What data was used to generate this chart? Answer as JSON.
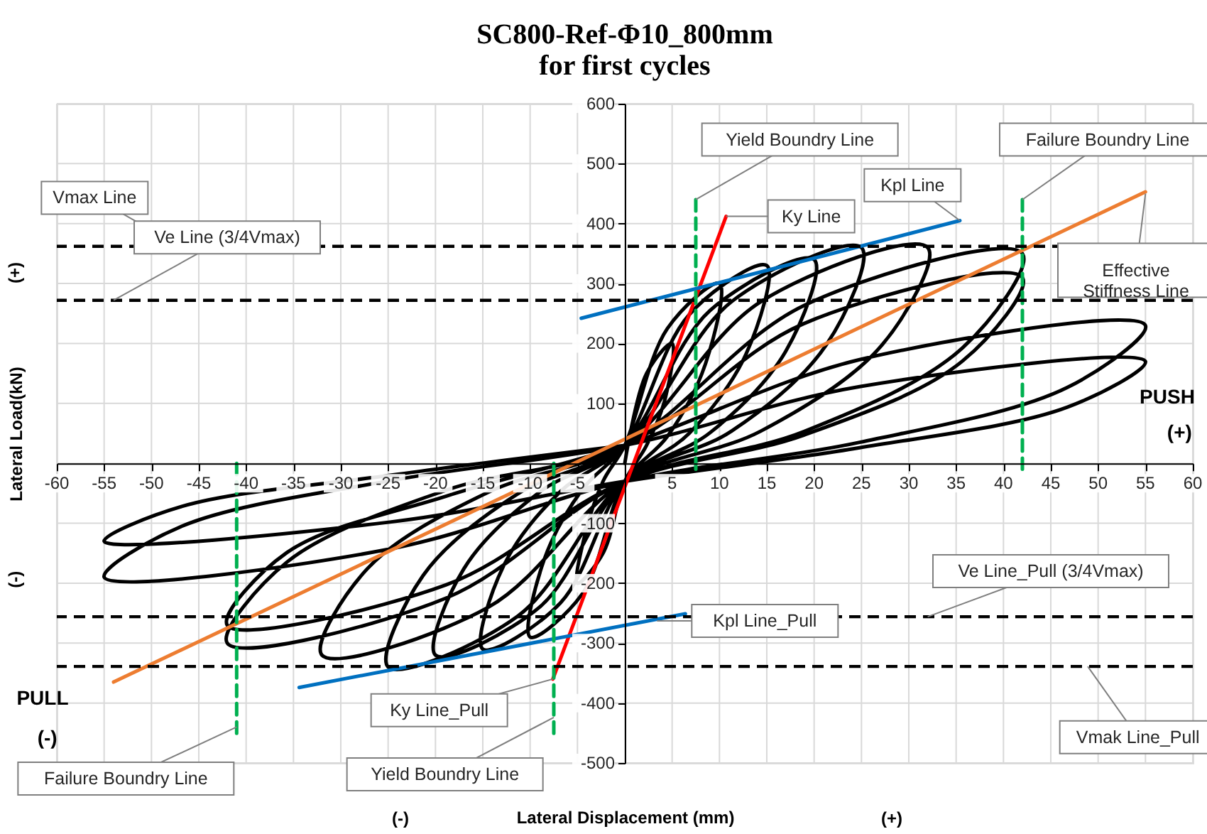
{
  "chart_data": {
    "type": "line",
    "title": "SC800-Ref-Φ10_800mm",
    "subtitle": "for first cycles",
    "xlabel": "Lateral Displacement (mm)",
    "ylabel": "Lateral Load(kN)",
    "xlim": [
      -60,
      60
    ],
    "xticks": [
      -60,
      -55,
      -50,
      -45,
      -40,
      -35,
      -30,
      -25,
      -20,
      -15,
      -10,
      -5,
      {
        "value": 0,
        "label": null
      },
      5,
      10,
      15,
      20,
      25,
      30,
      35,
      40,
      45,
      50,
      55,
      60
    ],
    "ylim": [
      -500,
      600
    ],
    "yticks": [
      -500,
      -400,
      -300,
      -200,
      -100,
      {
        "value": 0,
        "label": null
      },
      100,
      200,
      300,
      400,
      500,
      600
    ],
    "grid": true,
    "series": [
      {
        "color": "#000000",
        "x": [
          0,
          2.3,
          5,
          4.3,
          2.3,
          0,
          -2.3,
          -5,
          -4.3,
          -2.3,
          0,
          4.5,
          10,
          8.5,
          4.5,
          0,
          -4.5,
          -10,
          -8.5,
          -4.5,
          0,
          6.8,
          15,
          12.8,
          6.8,
          0,
          -6.8,
          -15,
          -12.8,
          -6.8,
          0,
          9,
          20,
          17,
          9,
          0,
          -9,
          -20,
          -17,
          -9,
          0,
          11.3,
          25,
          21.3,
          11.3,
          0,
          -11.3,
          -25,
          -21.3,
          -11.3,
          0,
          14.4,
          32,
          27.2,
          14.4,
          0,
          -14.4,
          -32,
          -27.2,
          -14.4,
          0,
          18.9,
          42,
          35.7,
          18.9,
          0,
          -18.9,
          -42,
          -35.7,
          -18.9,
          0,
          18.9,
          42,
          35.7,
          18.9,
          0,
          -18.9,
          -42,
          -35.7,
          -18.9,
          0,
          24.8,
          55,
          46.8,
          24.8,
          0,
          -24.8,
          -55,
          -46.8,
          -24.8,
          0,
          24.8,
          55,
          46.8,
          24.8,
          0,
          -24.8,
          -55,
          -46.8,
          -24.8,
          0
        ],
        "values": [
          0,
          150,
          200,
          110,
          30,
          -30,
          -150,
          -200,
          -125,
          -30,
          30,
          225,
          300,
          165,
          45,
          -30,
          -218,
          -290,
          -160,
          -44,
          30,
          248,
          330,
          182,
          50,
          -30,
          -233,
          -310,
          -171,
          -47,
          30,
          255,
          340,
          187,
          51,
          -30,
          -240,
          -320,
          -176,
          -48,
          30,
          270,
          360,
          198,
          54,
          -30,
          -255,
          -340,
          -187,
          -51,
          30,
          270,
          360,
          198,
          54,
          -30,
          -240,
          -320,
          -176,
          -48,
          30,
          263,
          350,
          193,
          53,
          -30,
          -225,
          -300,
          -165,
          -45,
          30,
          233,
          310,
          171,
          47,
          -30,
          -203,
          -270,
          -149,
          -55,
          30,
          173,
          230,
          127,
          35,
          -30,
          -143,
          -190,
          -105,
          -29,
          30,
          128,
          170,
          94,
          26,
          -30,
          -98,
          -130,
          -72,
          -20,
          30
        ]
      },
      {
        "color": "#ed7d31",
        "x": [
          -54,
          55
        ],
        "values": [
          -365,
          453
        ]
      },
      {
        "color": "#ff0000",
        "x": [
          -7.6,
          10.7
        ],
        "values": [
          -360,
          412
        ]
      },
      {
        "color": "#0070c0",
        "x": [
          -4.6,
          35.4
        ],
        "values": [
          242,
          405
        ]
      },
      {
        "color": "#0070c0",
        "x": [
          -34.4,
          6.4
        ],
        "values": [
          -374,
          -251
        ]
      },
      {
        "color": "#00b050",
        "line_style": "dashed",
        "x": [
          7.5,
          7.5
        ],
        "values": [
          440,
          -10
        ]
      },
      {
        "color": "#00b050",
        "line_style": "dashed",
        "x": [
          42,
          42
        ],
        "values": [
          440,
          -10
        ]
      },
      {
        "color": "#00b050",
        "line_style": "dashed",
        "x": [
          -7.5,
          -7.5
        ],
        "values": [
          0,
          -460
        ]
      },
      {
        "color": "#00b050",
        "line_style": "dashed",
        "x": [
          -41,
          -41
        ],
        "values": [
          0,
          -460
        ]
      }
    ],
    "ref_lines": [
      {
        "axis": "y",
        "value": 362,
        "color": "#000000",
        "line_style": "dashed"
      },
      {
        "axis": "y",
        "value": 272,
        "color": "#000000",
        "line_style": "dashed"
      },
      {
        "axis": "y",
        "value": -256,
        "color": "#000000",
        "line_style": "dashed"
      },
      {
        "axis": "y",
        "value": -339,
        "color": "#000000",
        "line_style": "dashed"
      }
    ],
    "annotations": [
      {
        "text": "Vmax Line",
        "x": -47,
        "y": 362
      },
      {
        "text": "Ve Line (3/4Vmax)",
        "x": -54,
        "y": 272
      },
      {
        "text": "Yield Boundry Line",
        "x": 7.5,
        "y": 440
      },
      {
        "text": "Ky Line",
        "x": 10.7,
        "y": 412
      },
      {
        "text": "Kpl Line",
        "x": 35.4,
        "y": 405
      },
      {
        "text": "Failure Boundry Line",
        "x": 42,
        "y": 440
      },
      {
        "text": "Effective\nStiffness Line",
        "x": 55,
        "y": 450
      },
      {
        "text": "Ve Line_Pull (3/4Vmax)",
        "x": 32,
        "y": -256
      },
      {
        "text": "Kpl Line_Pull",
        "x": 3.4,
        "y": -263
      },
      {
        "text": "Vmak Line_Pull",
        "x": 48.9,
        "y": -339
      },
      {
        "text": "Ky Line_Pull",
        "x": -7.6,
        "y": -360
      },
      {
        "text": "Yield Boundry Line",
        "x": -7.5,
        "y": -424
      },
      {
        "text": "Failure Boundry Line",
        "x": -41,
        "y": -440
      },
      "PUSH",
      "(+)",
      "PULL",
      "(-)",
      "(+)",
      "(-)",
      "(-)",
      "(+)"
    ]
  }
}
